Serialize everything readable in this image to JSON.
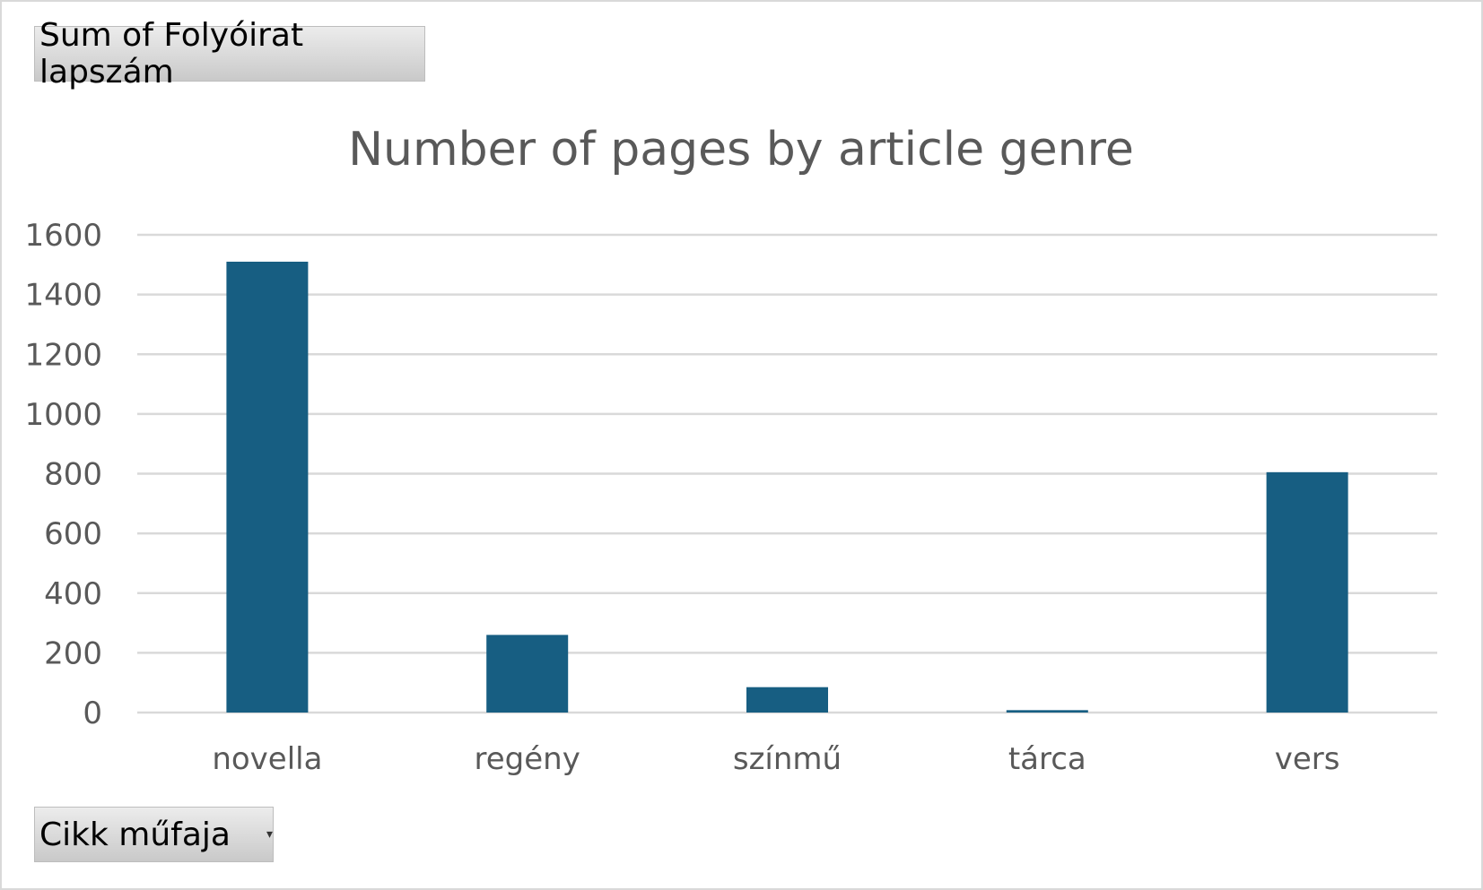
{
  "field_buttons": {
    "value_field_label": "Sum of Folyóirat lapszám",
    "axis_field_label": "Cikk műfaja",
    "dropdown_icon": "chevron-down-icon"
  },
  "chart_data": {
    "type": "bar",
    "title": "Number of pages by article genre",
    "xlabel": "",
    "ylabel": "",
    "categories": [
      "novella",
      "regény",
      "színmű",
      "tárca",
      "vers"
    ],
    "values": [
      1510,
      260,
      85,
      8,
      805
    ],
    "ylim": [
      0,
      1600
    ],
    "yticks": [
      0,
      200,
      400,
      600,
      800,
      1000,
      1200,
      1400,
      1600
    ],
    "grid": true,
    "legend": "none",
    "colors": {
      "bar": "#175e82",
      "grid": "#d9d9d9",
      "text": "#595959"
    }
  }
}
